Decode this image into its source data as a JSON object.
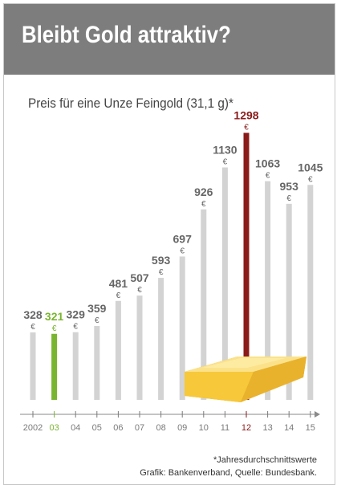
{
  "title": "Bleibt Gold attraktiv?",
  "subtitle": "Preis für eine Unze Feingold (31,1 g)*",
  "footnote": "*Jahresdurchschnittswerte",
  "source": "Grafik: Bankenverband, Quelle: Bundesbank.",
  "colors": {
    "header_bg": "#7d7d7d",
    "bar_default": "#d3d3d3",
    "highlight_low": "#7ab52f",
    "highlight_high": "#8b1a1a",
    "gold": "#f2c232"
  },
  "chart_data": {
    "type": "bar",
    "categories": [
      "2002",
      "03",
      "04",
      "05",
      "06",
      "07",
      "08",
      "09",
      "10",
      "11",
      "12",
      "13",
      "14",
      "15"
    ],
    "values": [
      328,
      321,
      329,
      359,
      481,
      507,
      593,
      697,
      926,
      1130,
      1298,
      1063,
      953,
      1045
    ],
    "value_labels": [
      "328",
      "321",
      "329",
      "359",
      "481",
      "507",
      "593",
      "697",
      "926",
      "1130",
      "1298",
      "1063",
      "953",
      "1045"
    ],
    "unit": "€",
    "highlight_low_index": 1,
    "highlight_high_index": 10,
    "title": "Preis für eine Unze Feingold (31,1 g)*",
    "xlabel": "",
    "ylabel": "",
    "grid": false,
    "legend": "none",
    "decoration": "gold-bar-icon"
  }
}
